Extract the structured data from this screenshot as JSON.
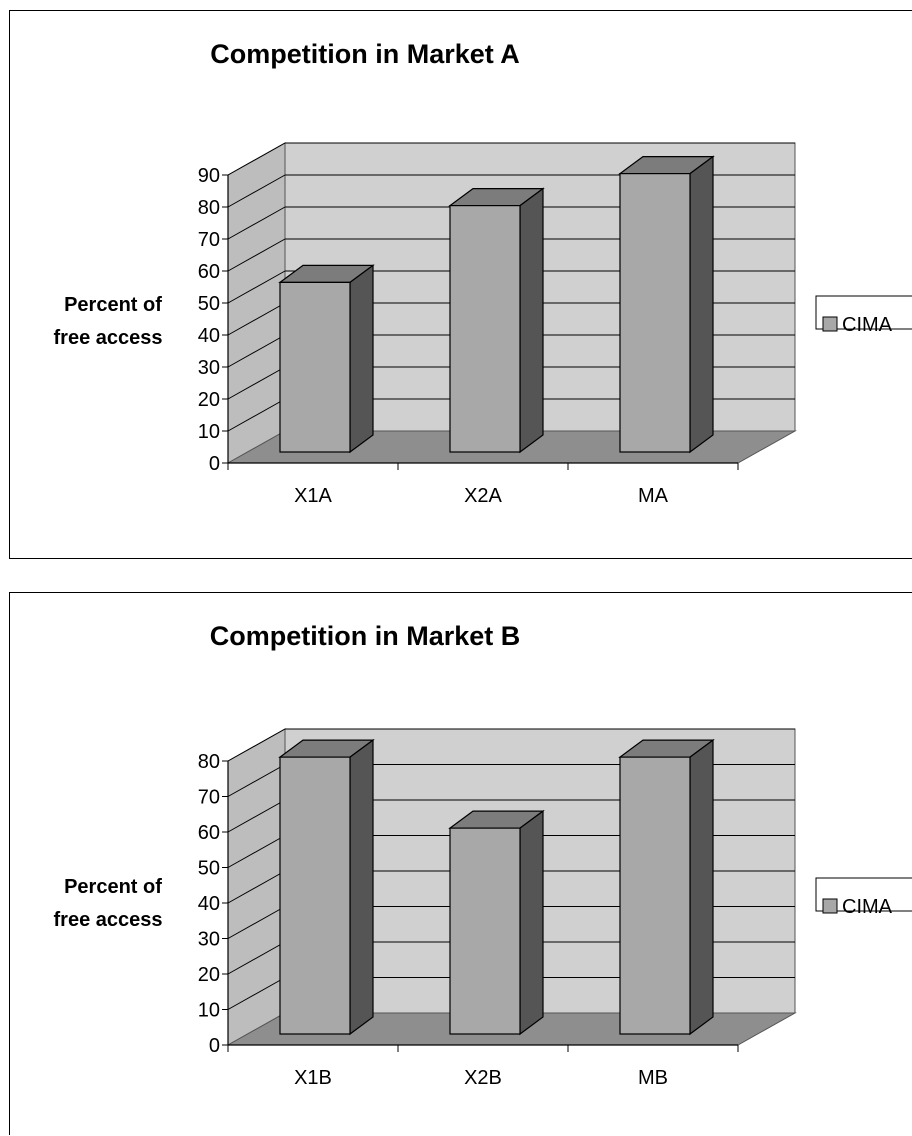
{
  "colors": {
    "back_wall": "#d0d0d0",
    "side_wall": "#bdbdbd",
    "floor": "#8e8e8e",
    "bar_front": "#a8a8a8",
    "bar_top": "#7c7c7c",
    "bar_side": "#555555",
    "legend_swatch": "#a8a8a8"
  },
  "chart_data": [
    {
      "type": "bar",
      "title": "Competition in Market A",
      "ylabel_line1": "Percent of",
      "ylabel_line2": "free access",
      "categories": [
        "X1A",
        "X2A",
        "MA"
      ],
      "series": [
        {
          "name": "CIMA",
          "values": [
            53,
            77,
            87
          ]
        }
      ],
      "yticks": [
        "0",
        "10",
        "20",
        "30",
        "40",
        "50",
        "60",
        "70",
        "80",
        "90"
      ],
      "ylim": [
        0,
        90
      ],
      "grid": true,
      "legend_position": "right"
    },
    {
      "type": "bar",
      "title": "Competition in Market B",
      "ylabel_line1": "Percent of",
      "ylabel_line2": "free access",
      "categories": [
        "X1B",
        "X2B",
        "MB"
      ],
      "series": [
        {
          "name": "CIMA",
          "values": [
            78,
            58,
            78
          ]
        }
      ],
      "yticks": [
        "0",
        "10",
        "20",
        "30",
        "40",
        "50",
        "60",
        "70",
        "80"
      ],
      "ylim": [
        0,
        80
      ],
      "grid": true,
      "legend_position": "right"
    }
  ]
}
